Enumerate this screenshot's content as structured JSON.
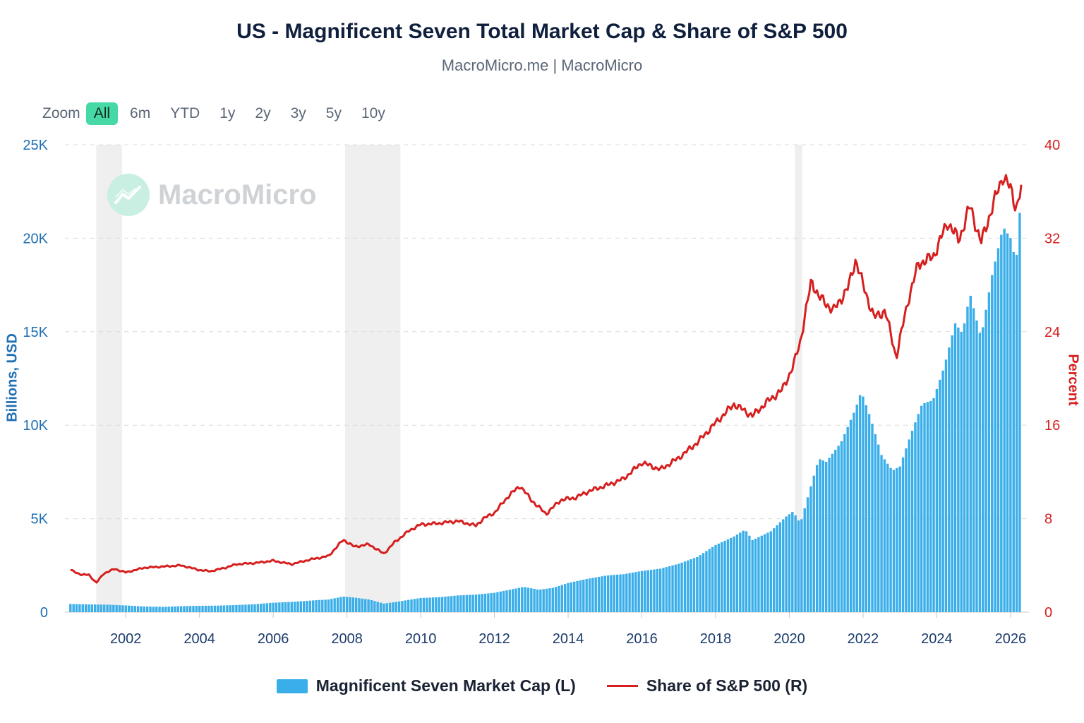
{
  "header": {
    "title": "US - Magnificent Seven Total Market Cap & Share of S&P 500",
    "subtitle": "MacroMicro.me | MacroMicro"
  },
  "zoom": {
    "label": "Zoom",
    "options": [
      "All",
      "6m",
      "YTD",
      "1y",
      "2y",
      "3y",
      "5y",
      "10y"
    ],
    "active": "All"
  },
  "watermark": {
    "text": "MacroMicro"
  },
  "colors": {
    "bars": "#3aaee9",
    "line": "#d61f1f",
    "recession": "#efefef",
    "left_axis": "#1f6fb3",
    "right_axis": "#d61f1f"
  },
  "chart_data": {
    "type": "bar",
    "x_range": [
      2000.35,
      2026.5
    ],
    "x_ticks": [
      "2002",
      "2004",
      "2006",
      "2008",
      "2010",
      "2012",
      "2014",
      "2016",
      "2018",
      "2020",
      "2022",
      "2024",
      "2026"
    ],
    "left_axis": {
      "label": "Billions, USD",
      "ticks": [
        "0",
        "5K",
        "10K",
        "15K",
        "20K",
        "25K"
      ],
      "range": [
        0,
        25000
      ]
    },
    "right_axis": {
      "label": "Percent",
      "ticks": [
        "0",
        "8",
        "16",
        "24",
        "32",
        "40"
      ],
      "range": [
        0,
        40
      ]
    },
    "recession_shading": [
      [
        2001.2,
        2001.9
      ],
      [
        2007.95,
        2009.45
      ],
      [
        2020.15,
        2020.35
      ]
    ],
    "grid": "horizontal dashed",
    "legend_position": "bottom",
    "series": [
      {
        "name": "Magnificent Seven Market Cap (L)",
        "type": "bar",
        "points": [
          [
            2000.5,
            450
          ],
          [
            2001.0,
            430
          ],
          [
            2001.5,
            420
          ],
          [
            2002.0,
            380
          ],
          [
            2002.5,
            320
          ],
          [
            2003.0,
            300
          ],
          [
            2003.5,
            340
          ],
          [
            2004.0,
            360
          ],
          [
            2004.5,
            370
          ],
          [
            2005.0,
            400
          ],
          [
            2005.5,
            440
          ],
          [
            2006.0,
            520
          ],
          [
            2006.5,
            560
          ],
          [
            2007.0,
            620
          ],
          [
            2007.5,
            680
          ],
          [
            2007.9,
            850
          ],
          [
            2008.2,
            800
          ],
          [
            2008.6,
            700
          ],
          [
            2009.0,
            480
          ],
          [
            2009.3,
            560
          ],
          [
            2009.7,
            700
          ],
          [
            2010.0,
            800
          ],
          [
            2010.5,
            850
          ],
          [
            2011.0,
            950
          ],
          [
            2011.5,
            1000
          ],
          [
            2012.0,
            1100
          ],
          [
            2012.5,
            1300
          ],
          [
            2012.8,
            1420
          ],
          [
            2013.2,
            1250
          ],
          [
            2013.6,
            1350
          ],
          [
            2014.0,
            1600
          ],
          [
            2014.5,
            1800
          ],
          [
            2015.0,
            1950
          ],
          [
            2015.5,
            2050
          ],
          [
            2016.0,
            2250
          ],
          [
            2016.5,
            2400
          ],
          [
            2017.0,
            2700
          ],
          [
            2017.5,
            3100
          ],
          [
            2018.0,
            3800
          ],
          [
            2018.5,
            4300
          ],
          [
            2018.8,
            4700
          ],
          [
            2019.0,
            4100
          ],
          [
            2019.5,
            4600
          ],
          [
            2019.9,
            5400
          ],
          [
            2020.1,
            5700
          ],
          [
            2020.3,
            5000
          ],
          [
            2020.6,
            7200
          ],
          [
            2020.8,
            8600
          ],
          [
            2021.0,
            8400
          ],
          [
            2021.4,
            9400
          ],
          [
            2021.8,
            11200
          ],
          [
            2021.95,
            12100
          ],
          [
            2022.2,
            10600
          ],
          [
            2022.5,
            8500
          ],
          [
            2022.8,
            7600
          ],
          [
            2023.0,
            7800
          ],
          [
            2023.3,
            9600
          ],
          [
            2023.6,
            11300
          ],
          [
            2023.9,
            11600
          ],
          [
            2024.2,
            13500
          ],
          [
            2024.5,
            16000
          ],
          [
            2024.7,
            15500
          ],
          [
            2024.9,
            17800
          ],
          [
            2025.2,
            15400
          ],
          [
            2025.5,
            19000
          ],
          [
            2025.8,
            21800
          ],
          [
            2026.0,
            21200
          ],
          [
            2026.15,
            19800
          ],
          [
            2026.3,
            24100
          ]
        ]
      },
      {
        "name": "Share of S&P 500 (R)",
        "type": "line",
        "points": [
          [
            2000.5,
            3.6
          ],
          [
            2000.8,
            3.2
          ],
          [
            2001.0,
            3.2
          ],
          [
            2001.2,
            2.5
          ],
          [
            2001.4,
            3.3
          ],
          [
            2001.7,
            3.7
          ],
          [
            2002.0,
            3.4
          ],
          [
            2002.5,
            3.8
          ],
          [
            2003.0,
            3.9
          ],
          [
            2003.5,
            4.0
          ],
          [
            2004.0,
            3.6
          ],
          [
            2004.3,
            3.5
          ],
          [
            2004.7,
            3.8
          ],
          [
            2005.0,
            4.1
          ],
          [
            2005.5,
            4.2
          ],
          [
            2006.0,
            4.4
          ],
          [
            2006.5,
            4.1
          ],
          [
            2007.0,
            4.5
          ],
          [
            2007.5,
            4.8
          ],
          [
            2007.9,
            6.2
          ],
          [
            2008.2,
            5.6
          ],
          [
            2008.6,
            5.8
          ],
          [
            2009.0,
            5.0
          ],
          [
            2009.3,
            6.0
          ],
          [
            2009.7,
            7.0
          ],
          [
            2010.0,
            7.5
          ],
          [
            2010.5,
            7.6
          ],
          [
            2011.0,
            7.8
          ],
          [
            2011.5,
            7.4
          ],
          [
            2011.7,
            8.0
          ],
          [
            2012.0,
            8.5
          ],
          [
            2012.4,
            10.0
          ],
          [
            2012.7,
            10.8
          ],
          [
            2013.0,
            9.6
          ],
          [
            2013.4,
            8.4
          ],
          [
            2013.8,
            9.6
          ],
          [
            2014.2,
            9.8
          ],
          [
            2014.6,
            10.4
          ],
          [
            2015.0,
            10.8
          ],
          [
            2015.5,
            11.4
          ],
          [
            2016.0,
            12.8
          ],
          [
            2016.5,
            12.2
          ],
          [
            2017.0,
            13.2
          ],
          [
            2017.5,
            14.5
          ],
          [
            2018.0,
            16.2
          ],
          [
            2018.5,
            17.8
          ],
          [
            2018.8,
            17.2
          ],
          [
            2019.0,
            16.8
          ],
          [
            2019.4,
            18.0
          ],
          [
            2019.8,
            19.0
          ],
          [
            2020.1,
            21.0
          ],
          [
            2020.3,
            23.2
          ],
          [
            2020.6,
            28.4
          ],
          [
            2020.8,
            27.0
          ],
          [
            2021.2,
            25.8
          ],
          [
            2021.6,
            27.8
          ],
          [
            2021.8,
            30.2
          ],
          [
            2022.0,
            28.0
          ],
          [
            2022.3,
            25.2
          ],
          [
            2022.6,
            25.8
          ],
          [
            2022.9,
            21.8
          ],
          [
            2023.2,
            26.4
          ],
          [
            2023.5,
            29.8
          ],
          [
            2023.9,
            30.4
          ],
          [
            2024.3,
            33.4
          ],
          [
            2024.6,
            31.8
          ],
          [
            2024.9,
            34.8
          ],
          [
            2025.2,
            31.6
          ],
          [
            2025.5,
            34.6
          ],
          [
            2025.8,
            37.4
          ],
          [
            2026.0,
            36.2
          ],
          [
            2026.15,
            34.6
          ],
          [
            2026.3,
            36.4
          ]
        ]
      }
    ]
  }
}
